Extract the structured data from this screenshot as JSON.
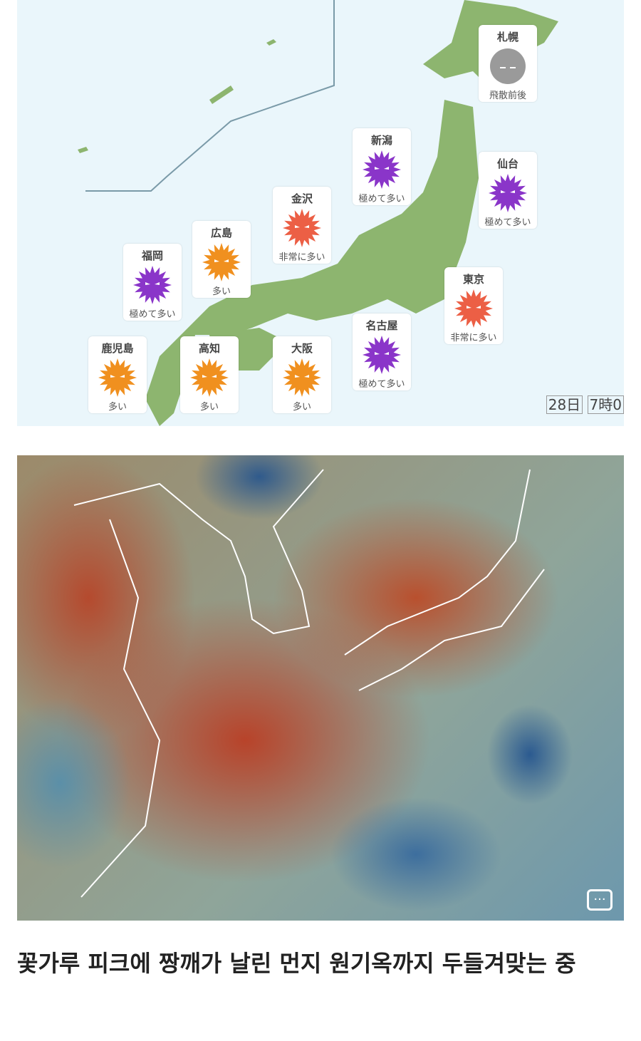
{
  "pollen_map": {
    "colors": {
      "sea": "#eaf6fb",
      "land": "#8db56f",
      "very_high": "#8a35c9",
      "high": "#ec5f45",
      "many": "#f0901f",
      "after": "#9a9a9a"
    },
    "cities": [
      {
        "name": "札幌",
        "level": "飛散前後",
        "icon": "gray-face-icon"
      },
      {
        "name": "新潟",
        "level": "極めて多い",
        "icon": "purple-virus-icon"
      },
      {
        "name": "仙台",
        "level": "極めて多い",
        "icon": "purple-virus-icon"
      },
      {
        "name": "金沢",
        "level": "非常に多い",
        "icon": "red-virus-icon"
      },
      {
        "name": "広島",
        "level": "多い",
        "icon": "orange-virus-icon"
      },
      {
        "name": "福岡",
        "level": "極めて多い",
        "icon": "purple-virus-icon"
      },
      {
        "name": "東京",
        "level": "非常に多い",
        "icon": "red-virus-icon"
      },
      {
        "name": "鹿児島",
        "level": "多い",
        "icon": "orange-virus-icon"
      },
      {
        "name": "高知",
        "level": "多い",
        "icon": "orange-virus-icon"
      },
      {
        "name": "大阪",
        "level": "多い",
        "icon": "orange-virus-icon"
      },
      {
        "name": "名古屋",
        "level": "極めて多い",
        "icon": "purple-virus-icon"
      }
    ],
    "date": "28日",
    "time": "7時0"
  },
  "wind_map": {
    "chat_icon": "chat-bubble-icon"
  },
  "caption": "꽃가루 피크에 짱깨가 날린 먼지 원기옥까지 두들겨맞는 중"
}
